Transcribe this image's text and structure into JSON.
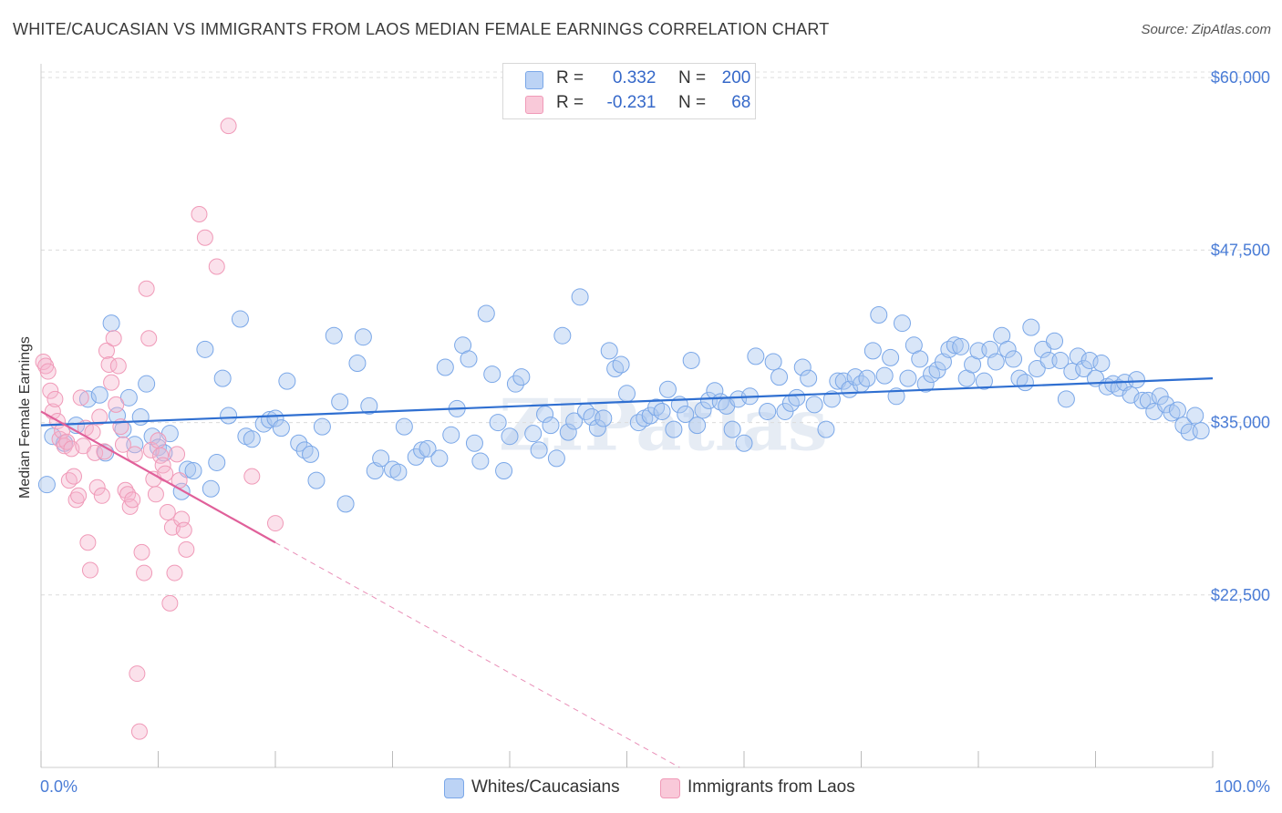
{
  "title": "WHITE/CAUCASIAN VS IMMIGRANTS FROM LAOS MEDIAN FEMALE EARNINGS CORRELATION CHART",
  "source": "Source: ZipAtlas.com",
  "watermark": "ZIPatlas",
  "legend": {
    "rows": [
      {
        "r_label": "R =",
        "r_value": "0.332",
        "n_label": "N =",
        "n_value": "200"
      },
      {
        "r_label": "R =",
        "r_value": "-0.231",
        "n_label": "N =",
        "n_value": "68"
      }
    ]
  },
  "x_axis": {
    "min_label": "0.0%",
    "max_label": "100.0%"
  },
  "bottom_legend": [
    "Whites/Caucasians",
    "Immigrants from Laos"
  ],
  "colors": {
    "blue": "#7aa7e8",
    "blue_line": "#2f6fd1",
    "pink": "#f09ab8",
    "pink_line": "#e0609a",
    "accent_text": "#3568c9"
  },
  "chart_data": {
    "type": "scatter",
    "ylabel": "Median Female Earnings",
    "xlim": [
      0,
      100
    ],
    "ylim": [
      10000,
      61000
    ],
    "yticks": [
      22500,
      35000,
      47500,
      60000
    ],
    "ytick_labels": [
      "$22,500",
      "$35,000",
      "$47,500",
      "$60,000"
    ],
    "grid": "horizontal-dashed",
    "legend_position": "top-center",
    "series": [
      {
        "name": "Whites/Caucasians",
        "color": "#7aa7e8",
        "trendline": {
          "x": [
            0,
            100
          ],
          "y": [
            34800,
            38200
          ]
        },
        "points": [
          [
            0.5,
            30500
          ],
          [
            1,
            34000
          ],
          [
            2,
            33500
          ],
          [
            3,
            34800
          ],
          [
            4,
            36700
          ],
          [
            5,
            37000
          ],
          [
            5.5,
            32800
          ],
          [
            6,
            42200
          ],
          [
            6.5,
            35500
          ],
          [
            7,
            34500
          ],
          [
            7.5,
            36800
          ],
          [
            8,
            33400
          ],
          [
            8.5,
            35400
          ],
          [
            9,
            37800
          ],
          [
            9.5,
            34000
          ],
          [
            10,
            33200
          ],
          [
            10.5,
            32800
          ],
          [
            11,
            34200
          ],
          [
            12,
            30000
          ],
          [
            12.5,
            31600
          ],
          [
            13,
            31500
          ],
          [
            14,
            40300
          ],
          [
            14.5,
            30200
          ],
          [
            15,
            32100
          ],
          [
            15.5,
            38200
          ],
          [
            16,
            35500
          ],
          [
            17,
            42500
          ],
          [
            17.5,
            34000
          ],
          [
            18,
            33800
          ],
          [
            19,
            34900
          ],
          [
            19.5,
            35200
          ],
          [
            20,
            35300
          ],
          [
            20.5,
            34600
          ],
          [
            21,
            38000
          ],
          [
            22,
            33500
          ],
          [
            22.5,
            33000
          ],
          [
            23,
            32700
          ],
          [
            23.5,
            30800
          ],
          [
            24,
            34700
          ],
          [
            25,
            41300
          ],
          [
            25.5,
            36500
          ],
          [
            26,
            29100
          ],
          [
            27,
            39300
          ],
          [
            27.5,
            41200
          ],
          [
            28,
            36200
          ],
          [
            28.5,
            31500
          ],
          [
            29,
            32400
          ],
          [
            30,
            31600
          ],
          [
            30.5,
            31400
          ],
          [
            31,
            34700
          ],
          [
            32,
            32500
          ],
          [
            32.5,
            33000
          ],
          [
            33,
            33100
          ],
          [
            34,
            32400
          ],
          [
            34.5,
            39000
          ],
          [
            35,
            34100
          ],
          [
            35.5,
            36000
          ],
          [
            36,
            40600
          ],
          [
            36.5,
            39600
          ],
          [
            37,
            33500
          ],
          [
            37.5,
            32200
          ],
          [
            38,
            42900
          ],
          [
            38.5,
            38500
          ],
          [
            39,
            35000
          ],
          [
            39.5,
            31500
          ],
          [
            40,
            34000
          ],
          [
            40.5,
            37800
          ],
          [
            41,
            38300
          ],
          [
            42,
            34200
          ],
          [
            42.5,
            33000
          ],
          [
            43,
            35600
          ],
          [
            43.5,
            34800
          ],
          [
            44,
            32400
          ],
          [
            44.5,
            41300
          ],
          [
            45,
            34300
          ],
          [
            45.5,
            35100
          ],
          [
            46,
            44100
          ],
          [
            46.5,
            35800
          ],
          [
            47,
            35400
          ],
          [
            47.5,
            34600
          ],
          [
            48,
            35300
          ],
          [
            48.5,
            40200
          ],
          [
            49,
            38900
          ],
          [
            49.5,
            39200
          ],
          [
            50,
            37100
          ],
          [
            51,
            35000
          ],
          [
            51.5,
            35300
          ],
          [
            52,
            35500
          ],
          [
            52.5,
            36100
          ],
          [
            53,
            35800
          ],
          [
            53.5,
            37400
          ],
          [
            54,
            34500
          ],
          [
            54.5,
            36300
          ],
          [
            55,
            35600
          ],
          [
            55.5,
            39500
          ],
          [
            56,
            34800
          ],
          [
            56.5,
            35900
          ],
          [
            57,
            36600
          ],
          [
            57.5,
            37300
          ],
          [
            58,
            36500
          ],
          [
            58.5,
            36200
          ],
          [
            59,
            34500
          ],
          [
            59.5,
            36700
          ],
          [
            60,
            33500
          ],
          [
            60.5,
            36900
          ],
          [
            61,
            39800
          ],
          [
            62,
            35800
          ],
          [
            62.5,
            39400
          ],
          [
            63,
            38300
          ],
          [
            63.5,
            35800
          ],
          [
            64,
            36400
          ],
          [
            64.5,
            36800
          ],
          [
            65,
            39000
          ],
          [
            65.5,
            38200
          ],
          [
            66,
            36300
          ],
          [
            67,
            34500
          ],
          [
            67.5,
            36700
          ],
          [
            68,
            38000
          ],
          [
            68.5,
            38000
          ],
          [
            69,
            37400
          ],
          [
            69.5,
            38300
          ],
          [
            70,
            37800
          ],
          [
            70.5,
            38200
          ],
          [
            71,
            40200
          ],
          [
            71.5,
            42800
          ],
          [
            72,
            38400
          ],
          [
            72.5,
            39700
          ],
          [
            73,
            36900
          ],
          [
            73.5,
            42200
          ],
          [
            74,
            38200
          ],
          [
            74.5,
            40600
          ],
          [
            75,
            39600
          ],
          [
            75.5,
            37800
          ],
          [
            76,
            38500
          ],
          [
            76.5,
            38800
          ],
          [
            77,
            39400
          ],
          [
            77.5,
            40300
          ],
          [
            78,
            40600
          ],
          [
            78.5,
            40500
          ],
          [
            79,
            38200
          ],
          [
            79.5,
            39200
          ],
          [
            80,
            40200
          ],
          [
            80.5,
            38000
          ],
          [
            81,
            40300
          ],
          [
            81.5,
            39400
          ],
          [
            82,
            41300
          ],
          [
            82.5,
            40300
          ],
          [
            83,
            39600
          ],
          [
            83.5,
            38200
          ],
          [
            84,
            37900
          ],
          [
            84.5,
            41900
          ],
          [
            85,
            38900
          ],
          [
            85.5,
            40300
          ],
          [
            86,
            39500
          ],
          [
            86.5,
            40900
          ],
          [
            87,
            39500
          ],
          [
            87.5,
            36700
          ],
          [
            88,
            38700
          ],
          [
            88.5,
            39800
          ],
          [
            89,
            38900
          ],
          [
            89.5,
            39500
          ],
          [
            90,
            38200
          ],
          [
            90.5,
            39300
          ],
          [
            91,
            37600
          ],
          [
            91.5,
            37800
          ],
          [
            92,
            37500
          ],
          [
            92.5,
            37900
          ],
          [
            93,
            37000
          ],
          [
            93.5,
            38100
          ],
          [
            94,
            36600
          ],
          [
            94.5,
            36600
          ],
          [
            95,
            35800
          ],
          [
            95.5,
            36900
          ],
          [
            96,
            36300
          ],
          [
            96.5,
            35700
          ],
          [
            97,
            35900
          ],
          [
            97.5,
            34800
          ],
          [
            98,
            34300
          ],
          [
            98.5,
            35500
          ],
          [
            99,
            34400
          ]
        ]
      },
      {
        "name": "Immigrants from Laos",
        "color": "#f09ab8",
        "trendline": {
          "x": [
            0,
            20
          ],
          "y": [
            35800,
            26300
          ]
        },
        "trendline_extension": {
          "x": [
            20,
            54.5
          ],
          "y": [
            26300,
            10000
          ]
        },
        "points": [
          [
            0.2,
            39400
          ],
          [
            0.4,
            39100
          ],
          [
            0.6,
            38700
          ],
          [
            0.8,
            37300
          ],
          [
            1,
            35800
          ],
          [
            1.2,
            36700
          ],
          [
            1.4,
            35100
          ],
          [
            1.6,
            33800
          ],
          [
            1.8,
            34400
          ],
          [
            2,
            33300
          ],
          [
            2.2,
            33600
          ],
          [
            2.4,
            30800
          ],
          [
            2.6,
            33100
          ],
          [
            2.8,
            31100
          ],
          [
            3,
            29400
          ],
          [
            3.2,
            29700
          ],
          [
            3.4,
            36800
          ],
          [
            3.6,
            33300
          ],
          [
            3.8,
            34600
          ],
          [
            4,
            26300
          ],
          [
            4.2,
            24300
          ],
          [
            4.4,
            34300
          ],
          [
            4.6,
            32800
          ],
          [
            4.8,
            30300
          ],
          [
            5,
            35400
          ],
          [
            5.2,
            29700
          ],
          [
            5.4,
            32900
          ],
          [
            5.6,
            40200
          ],
          [
            5.8,
            39200
          ],
          [
            6,
            37900
          ],
          [
            6.2,
            41100
          ],
          [
            6.4,
            36300
          ],
          [
            6.6,
            39100
          ],
          [
            6.8,
            34700
          ],
          [
            7,
            33400
          ],
          [
            7.2,
            30100
          ],
          [
            7.4,
            29800
          ],
          [
            7.6,
            28900
          ],
          [
            7.8,
            29400
          ],
          [
            8,
            32700
          ],
          [
            8.2,
            16800
          ],
          [
            8.4,
            12600
          ],
          [
            8.6,
            25600
          ],
          [
            8.8,
            24100
          ],
          [
            9,
            44700
          ],
          [
            9.2,
            41100
          ],
          [
            9.4,
            33000
          ],
          [
            9.6,
            30900
          ],
          [
            9.8,
            29800
          ],
          [
            10,
            33700
          ],
          [
            10.2,
            32600
          ],
          [
            10.4,
            31900
          ],
          [
            10.6,
            31300
          ],
          [
            10.8,
            28500
          ],
          [
            11,
            21900
          ],
          [
            11.2,
            27400
          ],
          [
            11.4,
            24100
          ],
          [
            11.6,
            32700
          ],
          [
            11.8,
            30800
          ],
          [
            12,
            28000
          ],
          [
            12.2,
            27200
          ],
          [
            12.4,
            25800
          ],
          [
            13.5,
            50100
          ],
          [
            14,
            48400
          ],
          [
            15,
            46300
          ],
          [
            16,
            56500
          ],
          [
            18,
            31100
          ],
          [
            20,
            27700
          ]
        ]
      }
    ]
  }
}
